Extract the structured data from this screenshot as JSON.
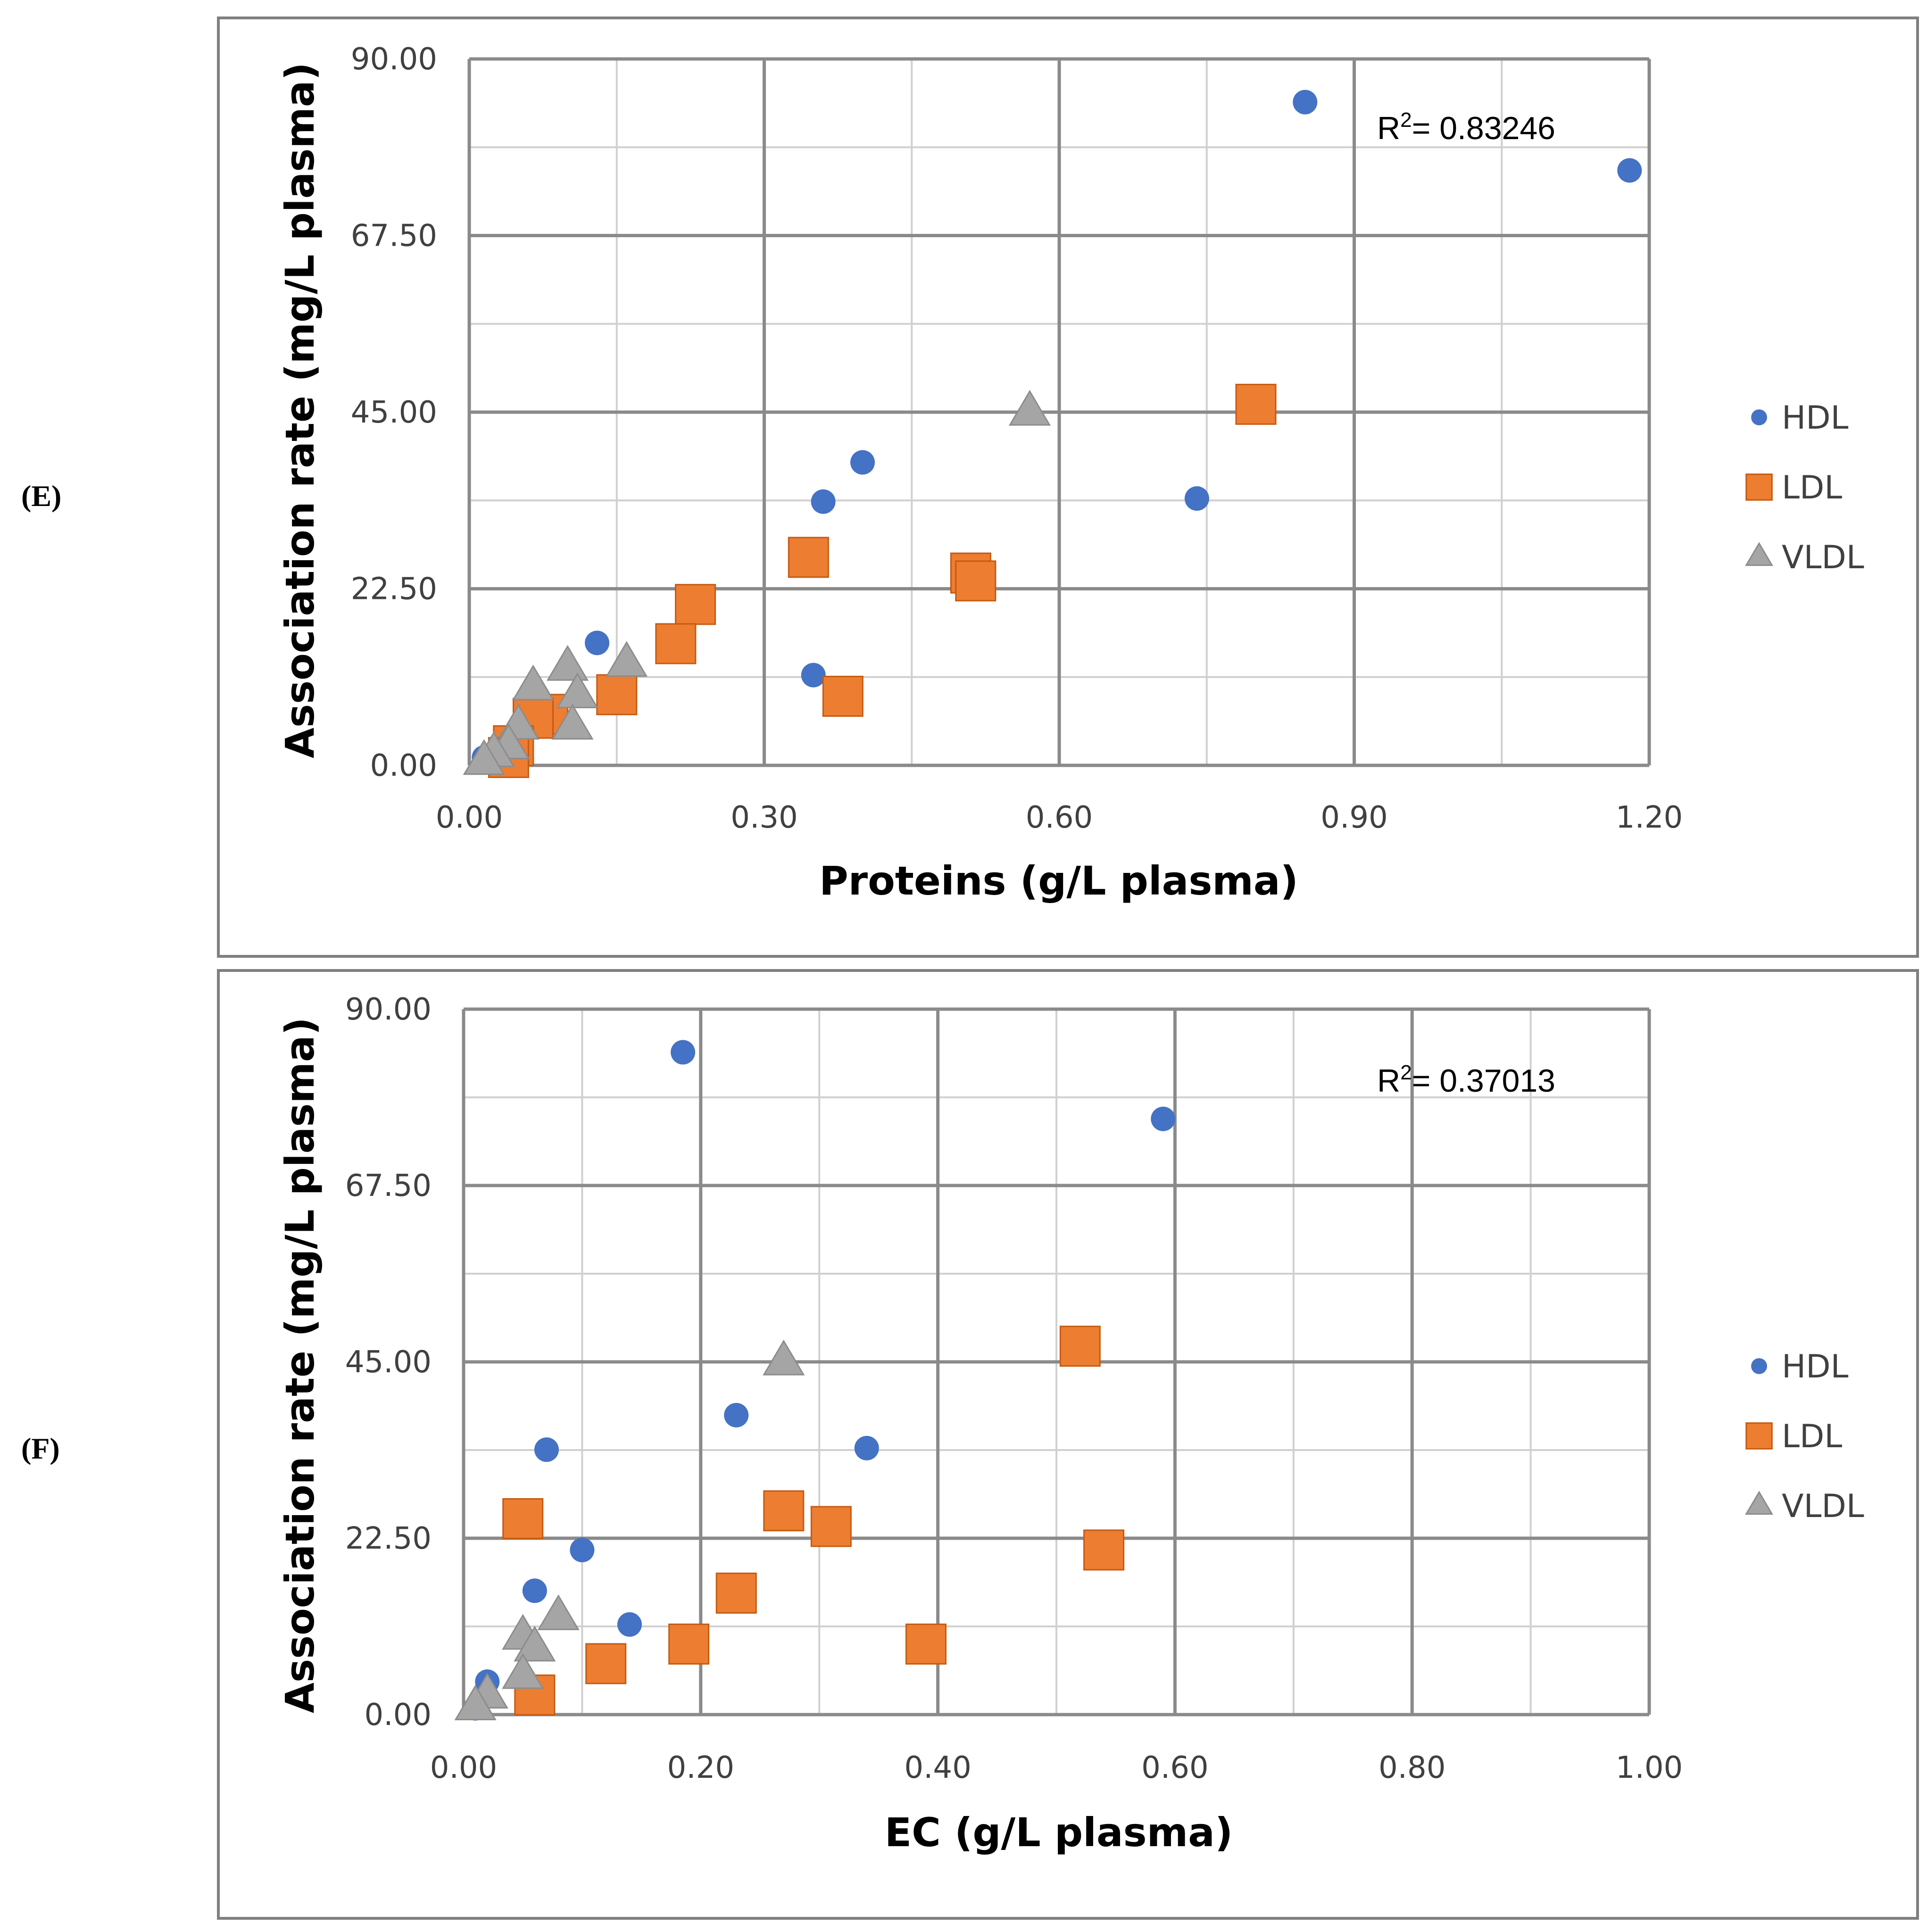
{
  "colors": {
    "HDL": "#4472C4",
    "LDL": "#ED7D31",
    "VLDL": "#A5A5A5"
  },
  "chart_data": [
    {
      "type": "scatter",
      "panel_label": "(E)",
      "xlabel": "Proteins (g/L plasma)",
      "ylabel": "Association rate  (mg/L plasma)",
      "xlim": [
        0,
        1.2
      ],
      "ylim": [
        0,
        90
      ],
      "x_ticks": [
        "0.00",
        "0.30",
        "0.60",
        "0.90",
        "1.20"
      ],
      "y_ticks": [
        "0.00",
        "22.50",
        "45.00",
        "67.50",
        "90.00"
      ],
      "r2_base": "R",
      "r2_sup": "2",
      "r2_value": "= 0.83246",
      "legend": [
        "HDL",
        "LDL",
        "VLDL"
      ],
      "series": [
        {
          "name": "HDL",
          "marker": "circle",
          "points": [
            [
              0.85,
              84.5
            ],
            [
              1.18,
              75.8
            ],
            [
              0.4,
              38.6
            ],
            [
              0.36,
              33.6
            ],
            [
              0.74,
              34.0
            ],
            [
              0.13,
              15.6
            ],
            [
              0.35,
              11.5
            ],
            [
              0.015,
              1.0
            ]
          ]
        },
        {
          "name": "LDL",
          "marker": "square",
          "points": [
            [
              0.8,
              46.0
            ],
            [
              0.345,
              26.5
            ],
            [
              0.51,
              24.5
            ],
            [
              0.515,
              23.5
            ],
            [
              0.23,
              20.5
            ],
            [
              0.21,
              15.5
            ],
            [
              0.15,
              9.0
            ],
            [
              0.38,
              8.8
            ],
            [
              0.08,
              6.5
            ],
            [
              0.065,
              6.0
            ],
            [
              0.045,
              2.5
            ],
            [
              0.04,
              1.0
            ]
          ]
        },
        {
          "name": "VLDL",
          "marker": "triangle",
          "points": [
            [
              0.57,
              45.0
            ],
            [
              0.1,
              12.5
            ],
            [
              0.16,
              13.0
            ],
            [
              0.065,
              10.0
            ],
            [
              0.11,
              9.0
            ],
            [
              0.105,
              5.0
            ],
            [
              0.05,
              5.0
            ],
            [
              0.04,
              2.5
            ],
            [
              0.025,
              1.5
            ],
            [
              0.015,
              0.5
            ]
          ]
        }
      ]
    },
    {
      "type": "scatter",
      "panel_label": "(F)",
      "xlabel": "EC (g/L plasma)",
      "ylabel": "Association rate  (mg/L plasma)",
      "xlim": [
        0,
        1.0
      ],
      "ylim": [
        0,
        90
      ],
      "x_ticks": [
        "0.00",
        "0.20",
        "0.40",
        "0.60",
        "0.80",
        "1.00"
      ],
      "y_ticks": [
        "0.00",
        "22.50",
        "45.00",
        "67.50",
        "90.00"
      ],
      "r2_base": "R",
      "r2_sup": "2",
      "r2_value": "= 0.37013",
      "legend": [
        "HDL",
        "LDL",
        "VLDL"
      ],
      "series": [
        {
          "name": "HDL",
          "marker": "circle",
          "points": [
            [
              0.185,
              84.5
            ],
            [
              0.59,
              76.0
            ],
            [
              0.23,
              38.2
            ],
            [
              0.07,
              33.8
            ],
            [
              0.34,
              34.0
            ],
            [
              0.1,
              21.0
            ],
            [
              0.06,
              15.8
            ],
            [
              0.14,
              11.5
            ],
            [
              0.02,
              4.2
            ],
            [
              0.01,
              0.8
            ]
          ]
        },
        {
          "name": "LDL",
          "marker": "square",
          "points": [
            [
              0.52,
              47.0
            ],
            [
              0.05,
              25.0
            ],
            [
              0.27,
              26.0
            ],
            [
              0.31,
              24.0
            ],
            [
              0.54,
              21.0
            ],
            [
              0.23,
              15.5
            ],
            [
              0.19,
              9.0
            ],
            [
              0.39,
              9.0
            ],
            [
              0.12,
              6.5
            ],
            [
              0.06,
              2.5
            ]
          ]
        },
        {
          "name": "VLDL",
          "marker": "triangle",
          "points": [
            [
              0.27,
              45.0
            ],
            [
              0.08,
              12.5
            ],
            [
              0.05,
              10.0
            ],
            [
              0.06,
              8.5
            ],
            [
              0.05,
              5.0
            ],
            [
              0.02,
              2.5
            ],
            [
              0.01,
              1.0
            ]
          ]
        }
      ]
    }
  ]
}
